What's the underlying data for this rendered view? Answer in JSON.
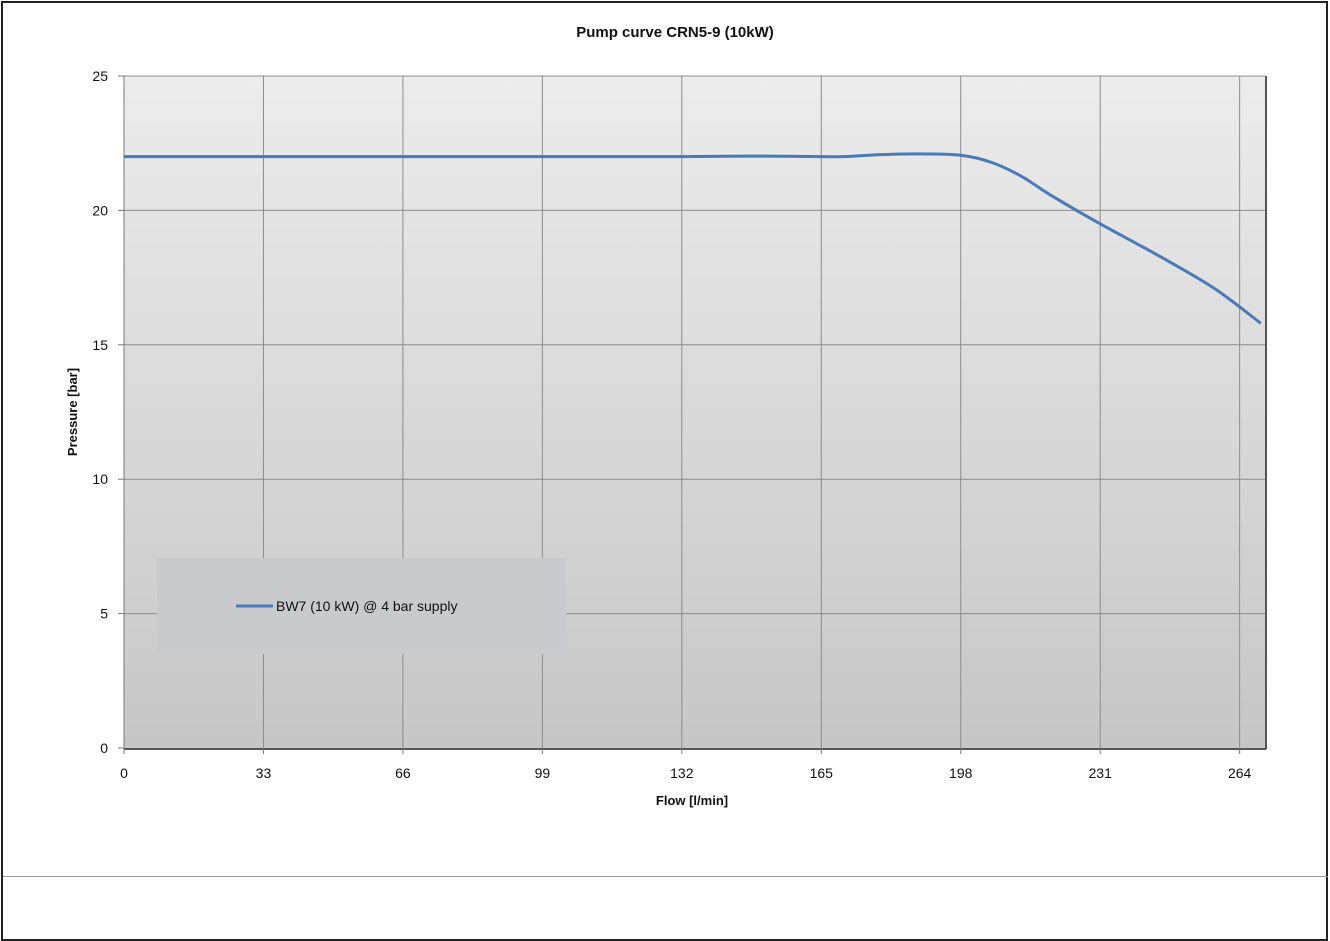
{
  "chart_data": {
    "type": "line",
    "title": "Pump curve CRN5-9 (10kW)",
    "xlabel": "Flow [l/min]",
    "ylabel": "Pressure [bar]",
    "xlim": [
      0,
      270
    ],
    "ylim": [
      0,
      25
    ],
    "x_ticks": [
      0,
      33,
      66,
      99,
      132,
      165,
      198,
      231,
      264
    ],
    "y_ticks": [
      0,
      5,
      10,
      15,
      20,
      25
    ],
    "grid": true,
    "legend_position": "lower-left",
    "series": [
      {
        "name": "BW7  (10 kW) @ 4 bar supply",
        "color": "#4a7ab8",
        "x": [
          0,
          33,
          66,
          99,
          132,
          150,
          165,
          170,
          180,
          190,
          198,
          205,
          212,
          220,
          231,
          245,
          258,
          269
        ],
        "y": [
          22,
          22,
          22,
          22,
          22,
          22.02,
          22.0,
          22.0,
          22.08,
          22.1,
          22.05,
          21.8,
          21.3,
          20.5,
          19.5,
          18.3,
          17.1,
          15.8
        ]
      }
    ]
  },
  "colors": {
    "line": "#4a7ab8",
    "plot_gradient_top": "#ececec",
    "plot_gradient_bottom": "#c6c6c6",
    "legend_bg": "#c9cacd",
    "grid": "#8c8c8c"
  }
}
